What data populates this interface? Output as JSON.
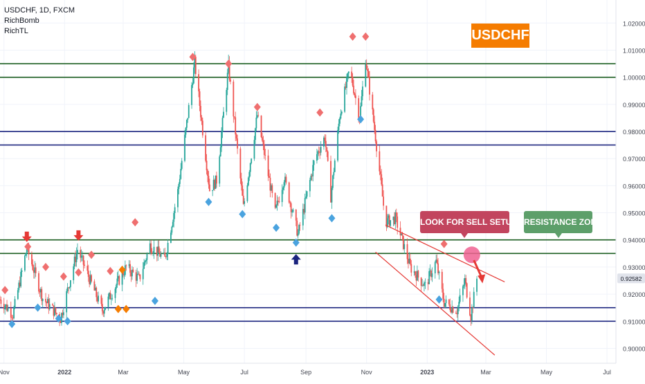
{
  "header": {
    "title": "USDCHF, 1D, FXCM",
    "indicators": [
      "RichBomb",
      "RichTL"
    ]
  },
  "annotations": {
    "symbol_badge": "USDCHF",
    "sell_callout": "LOOK FOR SELL SETUPS",
    "resistance_callout": "RESISTANCE ZONE"
  },
  "colors": {
    "up_candle": "#26a69a",
    "down_candle": "#ef5350",
    "support_resistance_green": "#1b5e20",
    "support_resistance_blue": "#1a237e",
    "channel_line": "#e53935",
    "badge_orange": "#f57c00",
    "callout_red": "#c2455e",
    "callout_green": "#5d9f6a",
    "marker_red": "#ef6f6f",
    "marker_blue": "#4aa3df",
    "marker_orange": "#f57c00",
    "arrow_red": "#e53935",
    "arrow_navy": "#1a237e",
    "current_price_tag": "#e0e3eb"
  },
  "chart_data": {
    "type": "candlestick",
    "symbol": "USDCHF",
    "timeframe": "1D",
    "source": "FXCM",
    "xaxis": {
      "range": [
        "2021-10-28",
        "2023-07-10"
      ],
      "ticks": [
        {
          "date": "2021-11-01",
          "label": "Nov"
        },
        {
          "date": "2022-01-01",
          "label": "2022"
        },
        {
          "date": "2022-03-01",
          "label": "Mar"
        },
        {
          "date": "2022-05-01",
          "label": "May"
        },
        {
          "date": "2022-07-01",
          "label": "Jul"
        },
        {
          "date": "2022-09-01",
          "label": "Sep"
        },
        {
          "date": "2022-11-01",
          "label": "Nov"
        },
        {
          "date": "2023-01-01",
          "label": "2023"
        },
        {
          "date": "2023-03-01",
          "label": "Mar"
        },
        {
          "date": "2023-05-01",
          "label": "May"
        },
        {
          "date": "2023-07-01",
          "label": "Jul"
        }
      ]
    },
    "yaxis": {
      "range": [
        0.8945,
        1.0285
      ],
      "ticks": [
        0.9,
        0.91,
        0.92,
        0.93,
        0.94,
        0.95,
        0.96,
        0.97,
        0.98,
        0.99,
        1.0,
        1.01,
        1.02
      ],
      "tick_labels": [
        "0.90000",
        "0.91000",
        "0.92000",
        "0.93000",
        "0.94000",
        "0.95000",
        "0.96000",
        "0.97000",
        "0.98000",
        "0.99000",
        "1.00000",
        "1.01000",
        "1.02000"
      ]
    },
    "horizontal_levels": [
      {
        "price": 1.005,
        "label": "1.00500",
        "color": "#1b5e20"
      },
      {
        "price": 1.0,
        "label": "1.00000",
        "color": "#1b5e20"
      },
      {
        "price": 0.98,
        "label": "0.98000",
        "color": "#1a237e"
      },
      {
        "price": 0.975,
        "label": "0.97500",
        "color": "#1a237e"
      },
      {
        "price": 0.94,
        "label": "0.94000",
        "color": "#1b5e20"
      },
      {
        "price": 0.935,
        "label": "0.93500",
        "color": "#1b5e20"
      },
      {
        "price": 0.915,
        "label": "0.91500",
        "color": "#1a237e"
      },
      {
        "price": 0.91,
        "label": "0.91000",
        "color": "#1a237e"
      }
    ],
    "current_price": {
      "price": 0.92582,
      "label": "0.92582"
    },
    "trendlines": [
      {
        "from": {
          "date": "2022-11-20",
          "price": 0.9455
        },
        "to": {
          "date": "2023-03-20",
          "price": 0.9245
        }
      },
      {
        "from": {
          "date": "2022-11-10",
          "price": 0.9355
        },
        "to": {
          "date": "2023-03-10",
          "price": 0.8975
        }
      }
    ],
    "highlight": {
      "date": "2023-02-15",
      "price": 0.9345
    },
    "projection_arrow": {
      "from": {
        "date": "2023-02-17",
        "price": 0.9325
      },
      "to": {
        "date": "2023-02-25",
        "price": 0.9245
      }
    },
    "anchors": [
      [
        "2021-10-28",
        0.918
      ],
      [
        "2021-11-10",
        0.9125
      ],
      [
        "2021-11-24",
        0.937
      ],
      [
        "2021-12-10",
        0.9185
      ],
      [
        "2021-12-28",
        0.911
      ],
      [
        "2022-01-14",
        0.9365
      ],
      [
        "2022-02-08",
        0.914
      ],
      [
        "2022-03-04",
        0.93
      ],
      [
        "2022-03-17",
        0.9255
      ],
      [
        "2022-03-28",
        0.938
      ],
      [
        "2022-04-12",
        0.933
      ],
      [
        "2022-04-25",
        0.958
      ],
      [
        "2022-05-12",
        1.0055
      ],
      [
        "2022-05-27",
        0.9585
      ],
      [
        "2022-06-03",
        0.962
      ],
      [
        "2022-06-15",
        1.004
      ],
      [
        "2022-06-30",
        0.952
      ],
      [
        "2022-07-14",
        0.986
      ],
      [
        "2022-08-01",
        0.95
      ],
      [
        "2022-08-10",
        0.963
      ],
      [
        "2022-08-24",
        0.942
      ],
      [
        "2022-09-10",
        0.97
      ],
      [
        "2022-09-20",
        0.978
      ],
      [
        "2022-09-26",
        0.956
      ],
      [
        "2022-10-05",
        0.986
      ],
      [
        "2022-10-15",
        1.003
      ],
      [
        "2022-10-25",
        0.985
      ],
      [
        "2022-10-31",
        1.007
      ],
      [
        "2022-11-10",
        0.978
      ],
      [
        "2022-11-20",
        0.9465
      ],
      [
        "2022-11-30",
        0.948
      ],
      [
        "2022-12-15",
        0.93
      ],
      [
        "2022-12-30",
        0.923
      ],
      [
        "2023-01-10",
        0.932
      ],
      [
        "2023-01-18",
        0.917
      ],
      [
        "2023-01-31",
        0.914
      ],
      [
        "2023-02-08",
        0.925
      ],
      [
        "2023-02-14",
        0.912
      ],
      [
        "2023-02-20",
        0.9258
      ]
    ],
    "markers": [
      {
        "date": "2021-11-02",
        "price": 0.9215,
        "type": "diamond",
        "color": "#ef6f6f"
      },
      {
        "date": "2021-11-09",
        "price": 0.909,
        "type": "diamond",
        "color": "#4aa3df"
      },
      {
        "date": "2021-11-25",
        "price": 0.9375,
        "type": "diamond",
        "color": "#ef6f6f"
      },
      {
        "date": "2021-12-05",
        "price": 0.915,
        "type": "diamond",
        "color": "#4aa3df"
      },
      {
        "date": "2021-12-13",
        "price": 0.93,
        "type": "diamond",
        "color": "#ef6f6f"
      },
      {
        "date": "2021-12-31",
        "price": 0.9265,
        "type": "diamond",
        "color": "#ef6f6f"
      },
      {
        "date": "2021-12-26",
        "price": 0.911,
        "type": "diamond",
        "color": "#4aa3df"
      },
      {
        "date": "2022-01-04",
        "price": 0.91,
        "type": "diamond",
        "color": "#4aa3df"
      },
      {
        "date": "2022-01-15",
        "price": 0.928,
        "type": "diamond",
        "color": "#ef6f6f"
      },
      {
        "date": "2022-01-28",
        "price": 0.9345,
        "type": "diamond",
        "color": "#ef6f6f"
      },
      {
        "date": "2022-02-16",
        "price": 0.9285,
        "type": "diamond",
        "color": "#ef6f6f"
      },
      {
        "date": "2022-02-24",
        "price": 0.9145,
        "type": "diamond",
        "color": "#f57c00"
      },
      {
        "date": "2022-02-28",
        "price": 0.929,
        "type": "diamond",
        "color": "#f57c00"
      },
      {
        "date": "2022-03-04",
        "price": 0.9145,
        "type": "diamond",
        "color": "#f57c00"
      },
      {
        "date": "2022-03-13",
        "price": 0.9465,
        "type": "diamond",
        "color": "#ef6f6f"
      },
      {
        "date": "2022-04-02",
        "price": 0.9175,
        "type": "diamond",
        "color": "#4aa3df"
      },
      {
        "date": "2022-05-10",
        "price": 1.0075,
        "type": "diamond",
        "color": "#ef6f6f"
      },
      {
        "date": "2022-05-26",
        "price": 0.954,
        "type": "diamond",
        "color": "#4aa3df"
      },
      {
        "date": "2022-06-15",
        "price": 1.005,
        "type": "diamond",
        "color": "#ef6f6f"
      },
      {
        "date": "2022-06-29",
        "price": 0.9495,
        "type": "diamond",
        "color": "#4aa3df"
      },
      {
        "date": "2022-07-14",
        "price": 0.989,
        "type": "diamond",
        "color": "#ef6f6f"
      },
      {
        "date": "2022-08-02",
        "price": 0.9445,
        "type": "diamond",
        "color": "#4aa3df"
      },
      {
        "date": "2022-08-22",
        "price": 0.939,
        "type": "diamond",
        "color": "#4aa3df"
      },
      {
        "date": "2022-09-15",
        "price": 0.987,
        "type": "diamond",
        "color": "#ef6f6f"
      },
      {
        "date": "2022-09-27",
        "price": 0.948,
        "type": "diamond",
        "color": "#4aa3df"
      },
      {
        "date": "2022-10-18",
        "price": 1.015,
        "type": "diamond",
        "color": "#ef6f6f"
      },
      {
        "date": "2022-10-26",
        "price": 0.9845,
        "type": "diamond",
        "color": "#4aa3df"
      },
      {
        "date": "2022-10-31",
        "price": 1.015,
        "type": "diamond",
        "color": "#ef6f6f"
      },
      {
        "date": "2023-01-18",
        "price": 0.9385,
        "type": "diamond",
        "color": "#ef6f6f"
      },
      {
        "date": "2023-01-13",
        "price": 0.918,
        "type": "diamond",
        "color": "#4aa3df"
      },
      {
        "date": "2021-11-24",
        "price": 0.9405,
        "type": "arrow-down",
        "color": "#e53935"
      },
      {
        "date": "2022-01-15",
        "price": 0.941,
        "type": "arrow-down",
        "color": "#e53935"
      },
      {
        "date": "2022-08-22",
        "price": 0.9335,
        "type": "arrow-up",
        "color": "#1a237e"
      }
    ]
  }
}
